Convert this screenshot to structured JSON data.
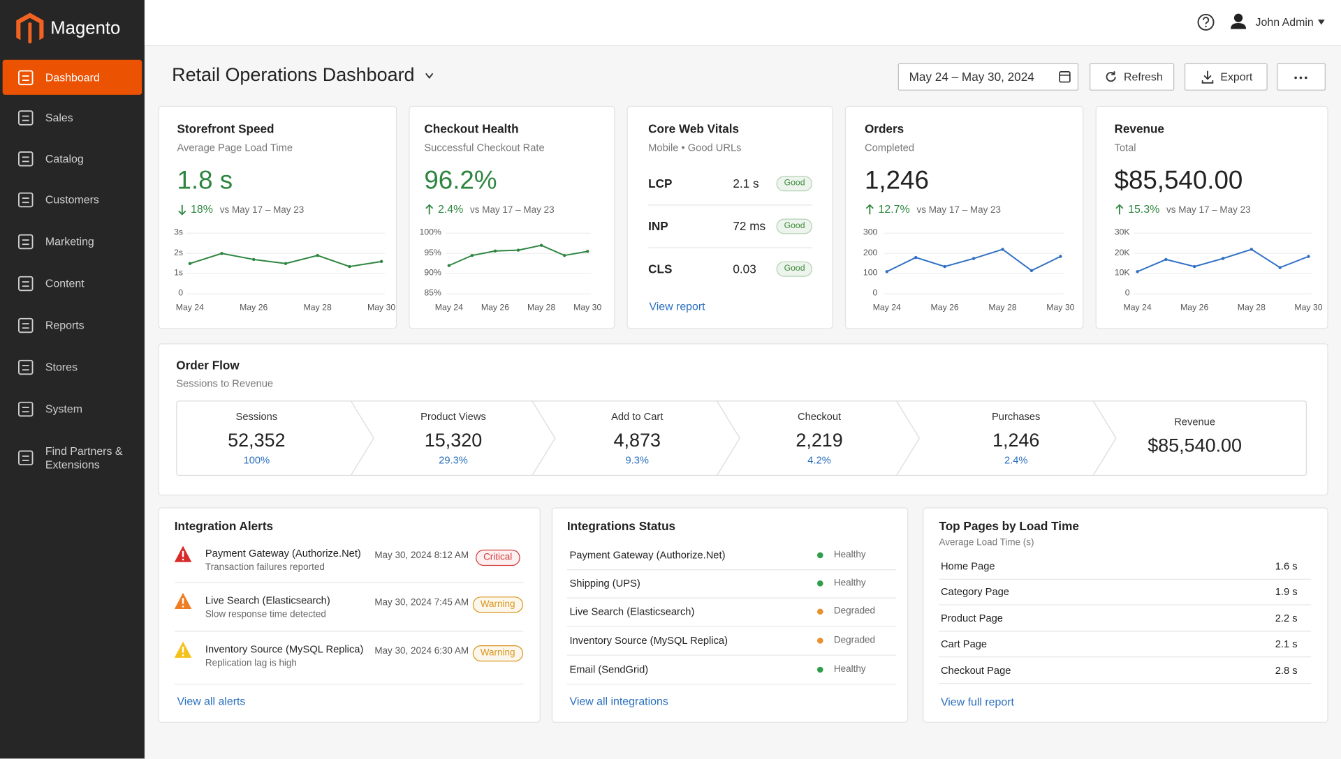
{
  "brand": "Magento",
  "nav": [
    {
      "label": "Dashboard",
      "active": true
    },
    {
      "label": "Sales"
    },
    {
      "label": "Catalog"
    },
    {
      "label": "Customers"
    },
    {
      "label": "Marketing"
    },
    {
      "label": "Content"
    },
    {
      "label": "Reports"
    },
    {
      "label": "Stores"
    },
    {
      "label": "System"
    },
    {
      "label": "Find Partners & Extensions"
    }
  ],
  "header": {
    "user": "John Admin"
  },
  "toolbar": {
    "title": "Retail Operations Dashboard",
    "date_range": "May 24 – May 30, 2024",
    "refresh": "Refresh",
    "export": "Export"
  },
  "kpis": [
    {
      "title": "Storefront Speed",
      "subtitle": "Average Page Load Time",
      "value": "1.8 s",
      "value_color": "#2e8540",
      "change": "18%",
      "direction": "down",
      "comparison": "vs May 17 – May 23",
      "chart": {
        "type": "line",
        "categories": [
          "May 24",
          null,
          "May 26",
          null,
          "May 28",
          null,
          "May 30"
        ],
        "values": [
          1.5,
          2.0,
          1.7,
          1.5,
          1.9,
          1.35,
          1.6
        ],
        "ylim": [
          0,
          3
        ],
        "yticks": [
          0,
          {
            "value": 1,
            "label": "1s"
          },
          {
            "value": 2,
            "label": "2s"
          },
          {
            "value": 3,
            "label": "3s"
          }
        ],
        "color": "#2e8540",
        "grid": true
      }
    },
    {
      "title": "Checkout Health",
      "subtitle": "Successful Checkout Rate",
      "value": "96.2%",
      "value_color": "#2e8540",
      "change": "2.4%",
      "direction": "up",
      "comparison": "vs May 17 – May 23",
      "chart": {
        "type": "line",
        "categories": [
          "May 24",
          null,
          "May 26",
          null,
          "May 28",
          null,
          "May 30"
        ],
        "values": [
          92,
          94.5,
          95.6,
          95.8,
          97,
          94.5,
          95.5
        ],
        "ylim": [
          85,
          100
        ],
        "yticks": [
          {
            "value": 85,
            "label": "85%"
          },
          {
            "value": 90,
            "label": "90%"
          },
          {
            "value": 95,
            "label": "95%"
          },
          {
            "value": 100,
            "label": "100%"
          }
        ],
        "color": "#2e8540",
        "grid": true
      }
    },
    {
      "title": "Orders",
      "subtitle": "Completed",
      "value": "1,246",
      "value_color": "#222222",
      "change": "12.7%",
      "direction": "up",
      "comparison": "vs May 17 – May 23",
      "chart": {
        "type": "line",
        "categories": [
          "May 24",
          null,
          "May 26",
          null,
          "May 28",
          null,
          "May 30"
        ],
        "values": [
          110,
          180,
          135,
          175,
          220,
          115,
          185
        ],
        "ylim": [
          0,
          300
        ],
        "yticks": [
          0,
          100,
          200,
          300
        ],
        "color": "#2f6fc4",
        "grid": true
      }
    },
    {
      "title": "Revenue",
      "subtitle": "Total",
      "value": "$85,540.00",
      "value_color": "#222222",
      "change": "15.3%",
      "direction": "up",
      "comparison": "vs May 17 – May 23",
      "chart": {
        "type": "line",
        "categories": [
          "May 24",
          null,
          "May 26",
          null,
          "May 28",
          null,
          "May 30"
        ],
        "values": [
          11000,
          17000,
          13500,
          17500,
          22000,
          13000,
          18500
        ],
        "ylim": [
          0,
          30000
        ],
        "yticks": [
          0,
          {
            "value": 10000,
            "label": "10K"
          },
          {
            "value": 20000,
            "label": "20K"
          },
          {
            "value": 30000,
            "label": "30K"
          }
        ],
        "color": "#2f6fc4",
        "grid": true
      }
    }
  ],
  "web_vitals": {
    "title": "Core Web Vitals",
    "subtitle": "Mobile • Good URLs",
    "badge_color": "#3b8a3b",
    "metrics": [
      {
        "name": "LCP",
        "value": "2.1 s",
        "status": "Good"
      },
      {
        "name": "INP",
        "value": "72 ms",
        "status": "Good"
      },
      {
        "name": "CLS",
        "value": "0.03",
        "status": "Good"
      }
    ],
    "link": "View report"
  },
  "order_flow": {
    "title": "Order Flow",
    "subtitle": "Sessions to Revenue",
    "stages": [
      {
        "label": "Sessions",
        "value": "52,352",
        "share": "100%"
      },
      {
        "label": "Product Views",
        "value": "15,320",
        "share": "29.3%"
      },
      {
        "label": "Add to Cart",
        "value": "4,873",
        "share": "9.3%"
      },
      {
        "label": "Checkout",
        "value": "2,219",
        "share": "4.2%"
      },
      {
        "label": "Purchases",
        "value": "1,246",
        "share": "2.4%"
      },
      {
        "label": "Revenue",
        "value": "$85,540.00"
      }
    ]
  },
  "alerts": {
    "title": "Integration Alerts",
    "items": [
      {
        "name": "Payment Gateway (Authorize.Net)",
        "detail": "Transaction failures reported",
        "time": "May 30, 2024 8:12 AM",
        "severity": "Critical",
        "icon_color": "#d92b2b",
        "badge_color": "#d63b3b"
      },
      {
        "name": "Live Search (Elasticsearch)",
        "detail": "Slow response time detected",
        "time": "May 30, 2024 7:45 AM",
        "severity": "Warning",
        "icon_color": "#ef7d22",
        "badge_color": "#d9961c"
      },
      {
        "name": "Inventory Source (MySQL Replica)",
        "detail": "Replication lag is high",
        "time": "May 30, 2024 6:30 AM",
        "severity": "Warning",
        "icon_color": "#f4c21b",
        "badge_color": "#d9961c"
      }
    ],
    "link": "View all alerts"
  },
  "integrations": {
    "title": "Integrations Status",
    "items": [
      {
        "name": "Payment Gateway (Authorize.Net)",
        "status": "Healthy",
        "color": "#2e9e4a"
      },
      {
        "name": "Shipping (UPS)",
        "status": "Healthy",
        "color": "#2e9e4a"
      },
      {
        "name": "Live Search (Elasticsearch)",
        "status": "Degraded",
        "color": "#e8912d"
      },
      {
        "name": "Inventory Source (MySQL Replica)",
        "status": "Degraded",
        "color": "#e8912d"
      },
      {
        "name": "Email (SendGrid)",
        "status": "Healthy",
        "color": "#2e9e4a"
      }
    ],
    "link": "View all integrations"
  },
  "top_pages": {
    "title": "Top Pages by Load Time",
    "subtitle": "Average Load Time (s)",
    "items": [
      {
        "name": "Home Page",
        "value": "1.6 s"
      },
      {
        "name": "Category Page",
        "value": "1.9 s"
      },
      {
        "name": "Product Page",
        "value": "2.2 s"
      },
      {
        "name": "Cart Page",
        "value": "2.1 s"
      },
      {
        "name": "Checkout Page",
        "value": "2.8 s"
      }
    ],
    "link": "View full report"
  }
}
